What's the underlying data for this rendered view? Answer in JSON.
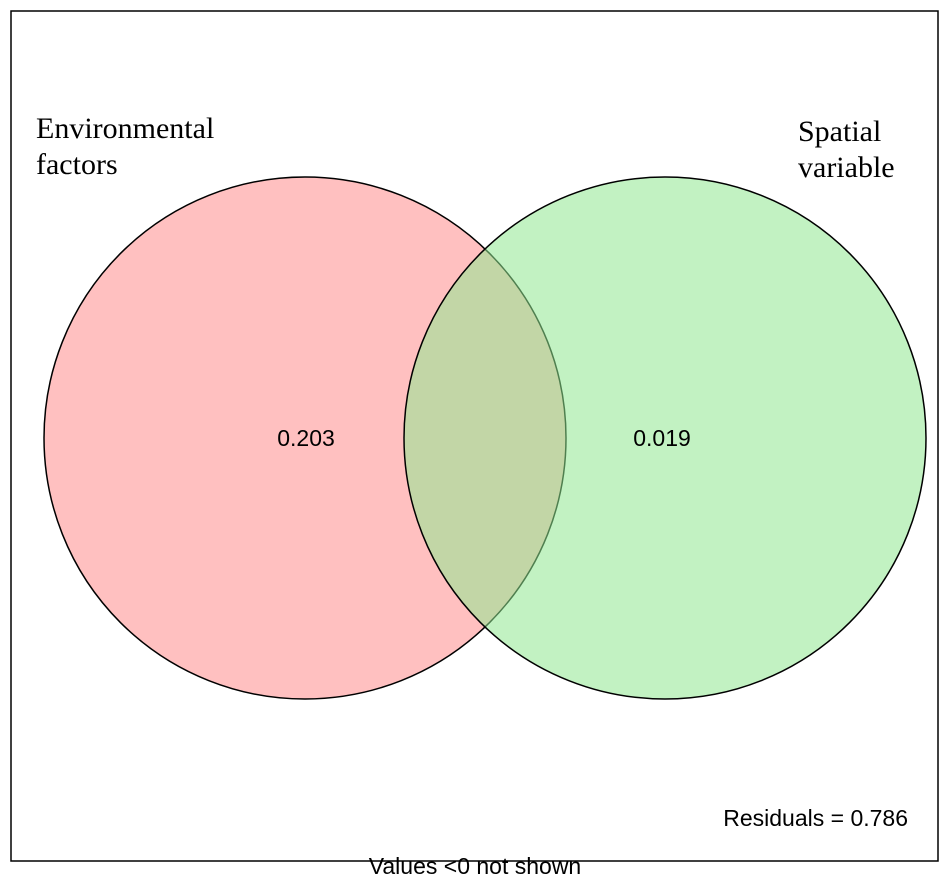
{
  "diagram": {
    "type": "venn",
    "sets": [
      {
        "label_lines": [
          "Environmental",
          "factors"
        ],
        "unique_value": "0.203",
        "fill_color": "#ffc0c0",
        "fill_opacity": 1.0
      },
      {
        "label_lines": [
          "Spatial",
          "variable"
        ],
        "unique_value": "0.019",
        "fill_color": "#90e890",
        "fill_opacity": 0.55
      }
    ],
    "overlap_value": "",
    "residuals_text": "Residuals = 0.786",
    "footer_note": "Values <0 not shown",
    "stroke_color": "#000000"
  }
}
